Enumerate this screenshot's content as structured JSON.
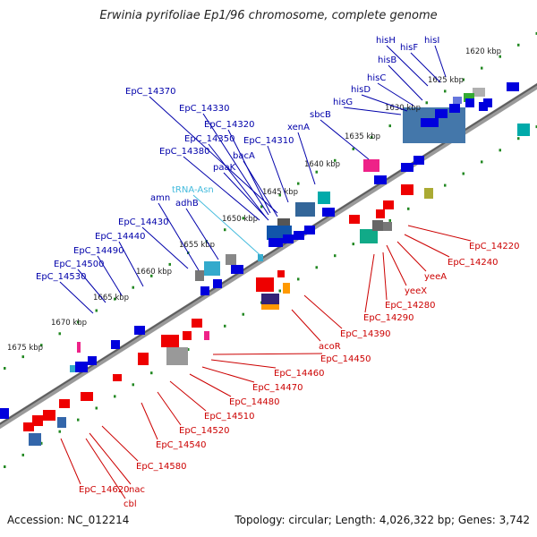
{
  "title": "Erwinia pyrifoliae Ep1/96 chromosome, complete genome",
  "accession": "Accession: NC_012214",
  "summary": "Topology: circular; Length: 4,026,322 bp; Genes: 3,742",
  "colors": {
    "forward_label": "#0000aa",
    "reverse_label": "#cc0000",
    "trna_label": "#44bbdd",
    "tick": "#228822",
    "backbone": "#707070"
  },
  "ticks": [
    "1620 kbp",
    "1625 kbp",
    "1630 kbp",
    "1635 kbp",
    "1640 kbp",
    "1645 kbp",
    "1650 kbp",
    "1655 kbp",
    "1660 kbp",
    "1665 kbp",
    "1670 kbp",
    "1675 kbp"
  ],
  "forward_labels": [
    "hisH",
    "hisF",
    "hisI",
    "hisB",
    "hisC",
    "hisD",
    "hisG",
    "sbcB",
    "xenA",
    "EpC_14370",
    "EpC_14330",
    "EpC_14320",
    "EpC_14310",
    "EpC_14350",
    "EpC_14380",
    "bacA",
    "paaK",
    "tRNA-Asn",
    "amn",
    "adhB",
    "EpC_14430",
    "EpC_14440",
    "EpC_14490",
    "EpC_14500",
    "EpC_14530"
  ],
  "reverse_labels": [
    "EpC_14220",
    "EpC_14240",
    "yeeA",
    "yeeX",
    "EpC_14280",
    "EpC_14290",
    "EpC_14390",
    "acoR",
    "EpC_14450",
    "EpC_14460",
    "EpC_14470",
    "EpC_14480",
    "EpC_14510",
    "EpC_14520",
    "EpC_14540",
    "EpC_14580",
    "EpC_14620",
    "nac",
    "cbl"
  ]
}
